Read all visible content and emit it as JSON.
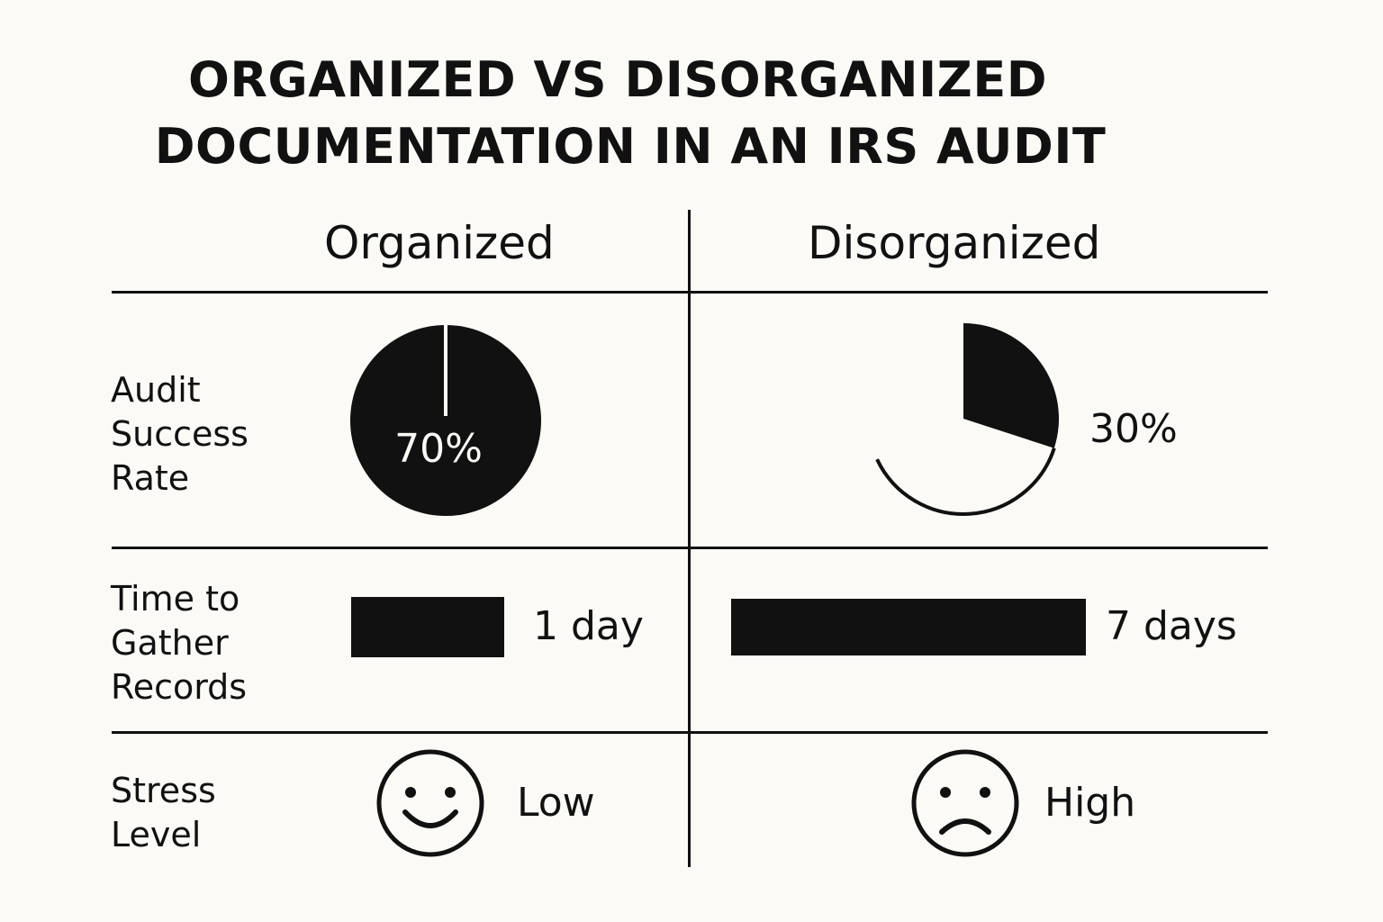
{
  "title": {
    "line1": "ORGANIZED VS DISORGANIZED",
    "line2": "DOCUMENTATION IN AN IRS AUDIT"
  },
  "columns": {
    "organized": "Organized",
    "disorganized": "Disorganized"
  },
  "rows": {
    "audit_success": {
      "label": "Audit\nSuccess\nRate",
      "organized_value": "70%",
      "organized_fraction": 0.7,
      "disorganized_value": "30%",
      "disorganized_fraction": 0.3
    },
    "time_to_gather": {
      "label": "Time to\nGather\nRecords",
      "organized_value": "1 day",
      "organized_days": 1,
      "disorganized_value": "7 days",
      "disorganized_days": 7
    },
    "stress": {
      "label": "Stress\nLevel",
      "organized_value": "Low",
      "organized_icon": "smiley-face-icon",
      "disorganized_value": "High",
      "disorganized_icon": "frowning-face-icon"
    }
  },
  "colors": {
    "background": "#fbfaf6",
    "ink": "#111111"
  }
}
